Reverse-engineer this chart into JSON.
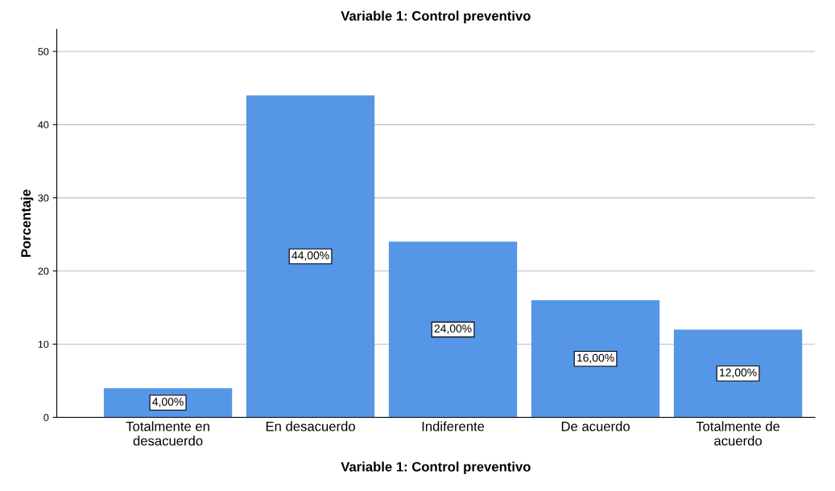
{
  "chart_data": {
    "type": "bar",
    "title": "Variable 1: Control preventivo",
    "xlabel": "Variable 1: Control preventivo",
    "ylabel": "Porcentaje",
    "categories": [
      "Totalmente en\ndesacuerdo",
      "En desacuerdo",
      "Indiferente",
      "De acuerdo",
      "Totalmente de\nacuerdo"
    ],
    "values": [
      4,
      44,
      24,
      16,
      12
    ],
    "value_labels": [
      "4,00%",
      "44,00%",
      "24,00%",
      "16,00%",
      "12,00%"
    ],
    "color": "#5596e6",
    "ylim": [
      0,
      53
    ],
    "yticks": [
      0,
      10,
      20,
      30,
      40,
      50
    ],
    "grid": "y",
    "legend": false
  }
}
